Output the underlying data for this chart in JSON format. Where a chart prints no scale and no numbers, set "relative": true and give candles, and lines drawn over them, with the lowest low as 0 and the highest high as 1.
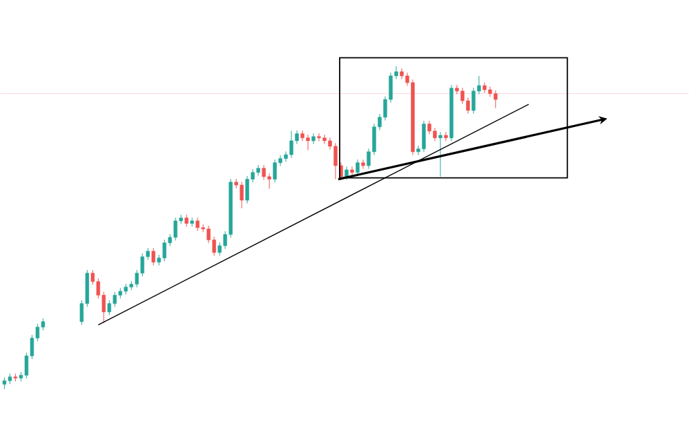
{
  "chart_data": {
    "type": "candlestick",
    "relative": true,
    "categories": [
      null,
      null,
      null,
      null,
      null,
      null,
      null,
      null,
      null,
      null,
      null,
      null,
      null,
      null,
      null,
      null,
      null,
      null,
      null,
      null,
      null,
      null,
      null,
      null,
      null,
      null,
      null,
      null,
      null,
      null,
      null,
      null,
      null,
      null,
      null,
      null,
      null,
      null,
      null,
      null,
      null,
      null,
      null,
      null,
      null,
      null,
      null,
      null,
      null,
      null,
      null,
      null,
      null,
      null,
      null,
      null,
      null,
      null,
      null,
      null,
      null,
      null,
      null,
      null,
      null,
      null,
      null,
      null,
      null,
      null,
      null,
      null,
      null,
      null,
      null,
      null,
      null,
      null,
      null,
      null,
      null,
      null,
      null,
      null,
      null,
      null,
      null,
      null,
      null,
      null,
      null,
      null,
      null,
      null,
      null,
      null,
      null,
      null,
      null,
      null,
      null,
      null,
      null,
      null,
      null,
      null,
      null,
      null,
      null,
      null,
      null,
      null,
      null,
      null,
      null,
      null,
      null,
      null,
      null,
      null,
      null,
      null,
      null,
      null,
      null
    ],
    "ohlc": [
      [
        0.015,
        0.036,
        0,
        0.026
      ],
      [
        0.026,
        0.048,
        0.016,
        0.038
      ],
      [
        0.038,
        0.048,
        0.024,
        0.034
      ],
      [
        0.034,
        0.053,
        0.024,
        0.043
      ],
      [
        0.043,
        0.113,
        0.033,
        0.103
      ],
      [
        0.103,
        0.168,
        0.093,
        0.158
      ],
      [
        0.158,
        0.202,
        0.148,
        0.192
      ],
      [
        0.192,
        0.219,
        0.182,
        0.209
      ],
      null,
      null,
      null,
      null,
      null,
      null,
      [
        0.209,
        0.275,
        0.199,
        0.265
      ],
      [
        0.265,
        0.369,
        0.255,
        0.359
      ],
      [
        0.359,
        0.369,
        0.323,
        0.333
      ],
      [
        0.333,
        0.343,
        0.281,
        0.291
      ],
      [
        0.291,
        0.301,
        0.205,
        0.239
      ],
      [
        0.239,
        0.275,
        0.229,
        0.265
      ],
      [
        0.265,
        0.301,
        0.255,
        0.291
      ],
      [
        0.291,
        0.313,
        0.281,
        0.303
      ],
      [
        0.303,
        0.326,
        0.293,
        0.316
      ],
      [
        0.316,
        0.335,
        0.306,
        0.325
      ],
      [
        0.325,
        0.369,
        0.315,
        0.359
      ],
      [
        0.359,
        0.42,
        0.349,
        0.41
      ],
      [
        0.41,
        0.437,
        0.4,
        0.427
      ],
      [
        0.427,
        0.437,
        0.383,
        0.393
      ],
      [
        0.393,
        0.416,
        0.383,
        0.406
      ],
      [
        0.406,
        0.463,
        0.396,
        0.453
      ],
      [
        0.453,
        0.48,
        0.443,
        0.47
      ],
      [
        0.47,
        0.531,
        0.46,
        0.521
      ],
      [
        0.521,
        0.54,
        0.511,
        0.53
      ],
      [
        0.53,
        0.54,
        0.503,
        0.513
      ],
      [
        0.513,
        0.531,
        0.503,
        0.521
      ],
      [
        0.521,
        0.531,
        0.49,
        0.5
      ],
      [
        0.5,
        0.51,
        0.486,
        0.496
      ],
      [
        0.496,
        0.506,
        0.452,
        0.462
      ],
      [
        0.462,
        0.472,
        0.413,
        0.423
      ],
      [
        0.423,
        0.454,
        0.413,
        0.444
      ],
      [
        0.444,
        0.489,
        0.434,
        0.479
      ],
      [
        0.479,
        0.651,
        0.469,
        0.641
      ],
      [
        0.641,
        0.651,
        0.622,
        0.632
      ],
      [
        0.632,
        0.642,
        0.56,
        0.585
      ],
      [
        0.585,
        0.66,
        0.575,
        0.65
      ],
      [
        0.65,
        0.681,
        0.64,
        0.671
      ],
      [
        0.671,
        0.694,
        0.661,
        0.684
      ],
      [
        0.684,
        0.694,
        0.648,
        0.658
      ],
      [
        0.658,
        0.668,
        0.62,
        0.65
      ],
      [
        0.65,
        0.711,
        0.64,
        0.701
      ],
      [
        0.701,
        0.724,
        0.691,
        0.714
      ],
      [
        0.714,
        0.736,
        0.704,
        0.726
      ],
      [
        0.726,
        0.8,
        0.716,
        0.769
      ],
      [
        0.769,
        0.801,
        0.759,
        0.791
      ],
      [
        0.791,
        0.801,
        0.768,
        0.778
      ],
      [
        0.778,
        0.788,
        0.74,
        0.769
      ],
      [
        0.769,
        0.792,
        0.759,
        0.782
      ],
      [
        0.782,
        0.792,
        0.768,
        0.778
      ],
      [
        0.778,
        0.788,
        0.759,
        0.769
      ],
      [
        0.769,
        0.779,
        0.742,
        0.752
      ],
      [
        0.752,
        0.762,
        0.65,
        0.692
      ],
      [
        0.692,
        0.702,
        0.648,
        0.658
      ],
      [
        0.658,
        0.689,
        0.648,
        0.679
      ],
      [
        0.679,
        0.689,
        0.661,
        0.671
      ],
      [
        0.671,
        0.711,
        0.661,
        0.701
      ],
      [
        0.701,
        0.711,
        0.682,
        0.692
      ],
      [
        0.692,
        0.745,
        0.682,
        0.735
      ],
      [
        0.735,
        0.822,
        0.725,
        0.812
      ],
      [
        0.812,
        0.852,
        0.802,
        0.842
      ],
      [
        0.842,
        0.907,
        0.832,
        0.897
      ],
      [
        0.897,
        0.98,
        0.887,
        0.97
      ],
      [
        0.97,
        1,
        0.96,
        0.983
      ],
      [
        0.983,
        0.993,
        0.96,
        0.97
      ],
      [
        0.97,
        0.98,
        0.939,
        0.949
      ],
      [
        0.949,
        0.959,
        0.725,
        0.735
      ],
      [
        0.735,
        0.754,
        0.725,
        0.744
      ],
      [
        0.744,
        0.831,
        0.734,
        0.821
      ],
      [
        0.821,
        0.831,
        0.789,
        0.799
      ],
      [
        0.799,
        0.809,
        0.768,
        0.778
      ],
      [
        0.778,
        0.796,
        0.658,
        0.786
      ],
      [
        0.786,
        0.796,
        0.768,
        0.778
      ],
      [
        0.778,
        0.942,
        0.768,
        0.932
      ],
      [
        0.932,
        0.942,
        0.913,
        0.923
      ],
      [
        0.923,
        0.933,
        0.883,
        0.893
      ],
      [
        0.893,
        0.903,
        0.853,
        0.863
      ],
      [
        0.863,
        0.933,
        0.853,
        0.923
      ],
      [
        0.923,
        0.97,
        0.913,
        0.94
      ],
      [
        0.94,
        0.95,
        0.917,
        0.927
      ],
      [
        0.927,
        0.937,
        0.905,
        0.915
      ],
      [
        0.915,
        0.925,
        0.87,
        0.897
      ],
      null,
      null,
      null,
      null,
      null,
      null,
      null,
      null,
      null,
      null,
      null,
      null,
      null,
      null,
      null,
      null,
      null,
      null,
      null,
      null,
      null,
      null,
      null,
      null,
      null,
      null,
      null,
      null,
      null,
      null,
      null,
      null,
      null,
      null,
      null
    ],
    "series": [
      {
        "type": "line",
        "color": "#000000",
        "values": [
          null,
          null,
          null,
          null,
          null,
          null,
          null,
          null,
          null,
          null,
          null,
          null,
          null,
          null,
          null,
          null,
          null,
          0.199,
          null,
          null,
          null,
          null,
          null,
          null,
          null,
          null,
          null,
          null,
          null,
          null,
          null,
          null,
          null,
          null,
          null,
          null,
          null,
          null,
          null,
          null,
          null,
          null,
          null,
          null,
          null,
          null,
          null,
          null,
          null,
          null,
          null,
          null,
          null,
          null,
          null,
          null,
          null,
          null,
          null,
          null,
          null,
          null,
          null,
          null,
          null,
          null,
          null,
          null,
          null,
          null,
          null,
          null,
          null,
          null,
          null,
          null,
          null,
          null,
          null,
          null,
          null,
          null,
          null,
          null,
          null,
          null,
          null,
          null,
          null,
          null,
          null,
          null,
          null,
          null,
          null,
          0.882,
          null,
          null,
          null,
          null,
          null,
          null,
          null,
          null,
          null,
          null,
          null,
          null,
          null,
          null,
          null,
          null,
          null,
          null,
          null,
          null,
          null,
          null,
          null,
          null,
          null,
          null,
          null,
          null,
          null
        ]
      }
    ],
    "ref_lines": [
      {
        "axis": "y",
        "value": 0.915,
        "color": "#f9d0d8"
      }
    ]
  }
}
